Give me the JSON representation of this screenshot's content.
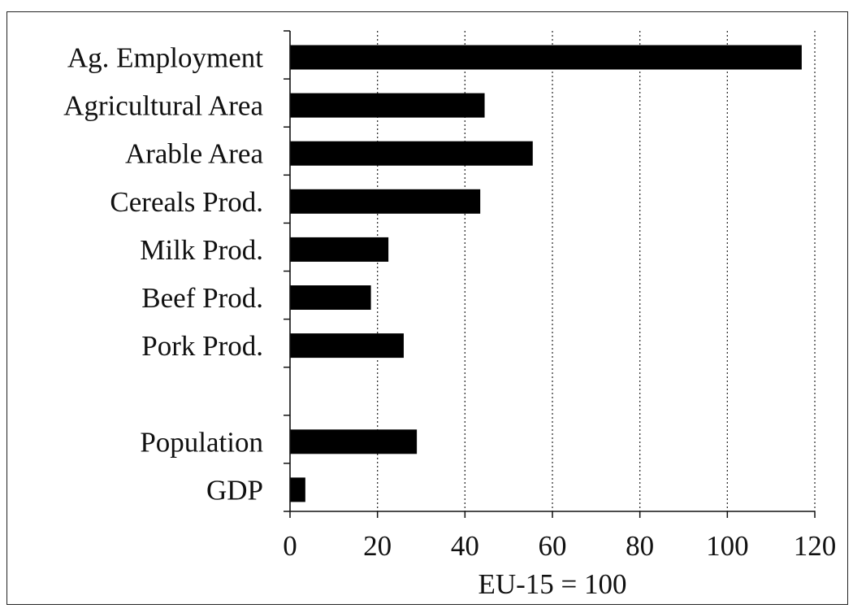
{
  "chart_data": {
    "type": "bar",
    "orientation": "horizontal",
    "categories": [
      "Ag. Employment",
      "Agricultural Area",
      "Arable Area",
      "Cereals Prod.",
      "Milk Prod.",
      "Beef Prod.",
      "Pork Prod.",
      "",
      "Population",
      "GDP"
    ],
    "values": [
      117,
      44.5,
      55.5,
      43.5,
      22.5,
      18.5,
      26,
      null,
      29,
      3.5
    ],
    "xlabel": "EU-15 = 100",
    "xlim": [
      0,
      120
    ],
    "xticks": [
      0,
      20,
      40,
      60,
      80,
      100,
      120
    ],
    "grid": "vertical-dotted",
    "bar_color": "#000000"
  }
}
